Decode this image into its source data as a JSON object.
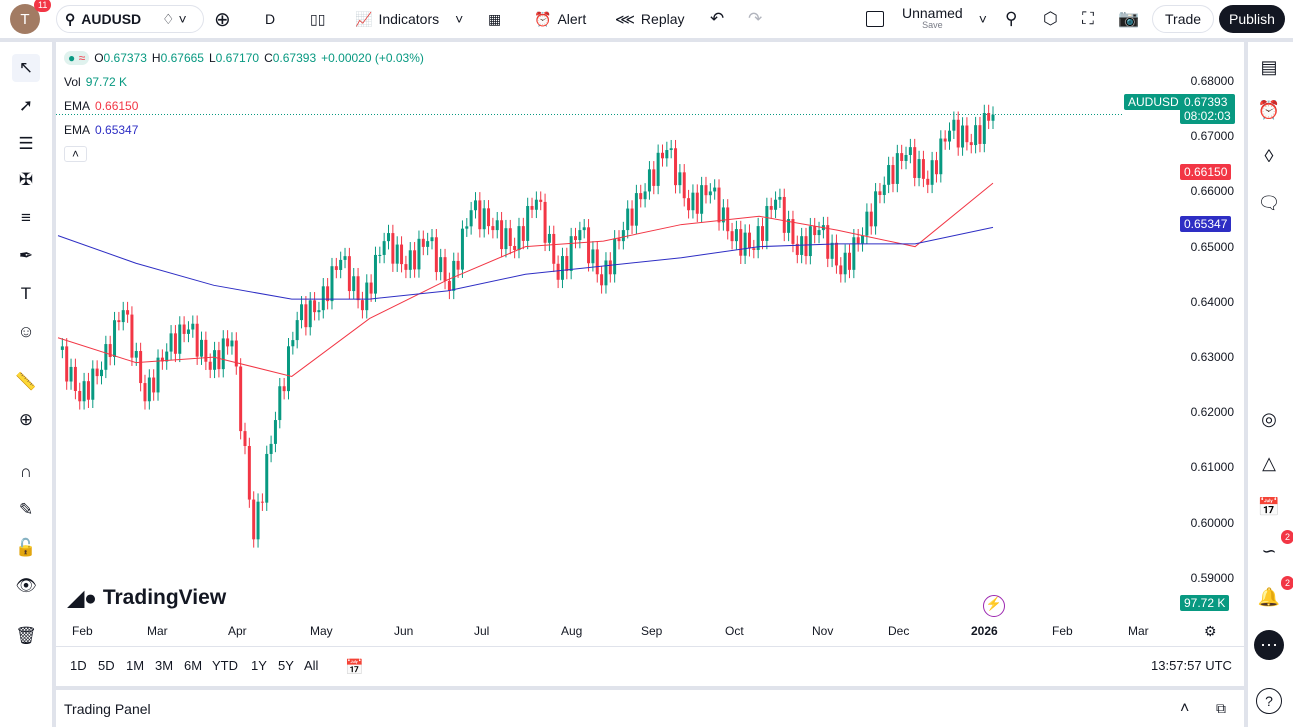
{
  "topbar": {
    "avatar_letter": "T",
    "notif_count": "11",
    "symbol": "AUDUSD",
    "interval": "D",
    "indicators": "Indicators",
    "alert": "Alert",
    "replay": "Replay",
    "layout_name": "Unnamed",
    "save": "Save",
    "trade": "Trade",
    "publish": "Publish"
  },
  "legend": {
    "o": "0.67373",
    "h": "0.67665",
    "l": "0.67170",
    "c": "0.67393",
    "change": "+0.00020 (+0.03%)",
    "vol_label": "Vol",
    "vol": "97.72 K",
    "ema1_label": "EMA",
    "ema1": "0.66150",
    "ema2_label": "EMA",
    "ema2": "0.65347"
  },
  "price_axis": [
    "0.68000",
    "0.67000",
    "0.66000",
    "0.65000",
    "0.64000",
    "0.63000",
    "0.62000",
    "0.61000",
    "0.60000",
    "0.59000"
  ],
  "labels": {
    "symbol": "AUDUSD",
    "price": "0.67393",
    "countdown": "08:02:03",
    "ema1": "0.66150",
    "ema2": "0.65347",
    "vol": "97.72 K"
  },
  "time_axis": [
    "Feb",
    "Mar",
    "Apr",
    "May",
    "Jun",
    "Jul",
    "Aug",
    "Sep",
    "Oct",
    "Nov",
    "Dec",
    "2026",
    "Feb",
    "Mar"
  ],
  "ranges": [
    "1D",
    "5D",
    "1M",
    "3M",
    "6M",
    "YTD",
    "1Y",
    "5Y",
    "All"
  ],
  "clock": "13:57:57 UTC",
  "watermark": "TradingView",
  "trading_panel": "Trading Panel",
  "right_badges": {
    "feed": "2",
    "alerts": "2"
  },
  "colors": {
    "up": "#089981",
    "down": "#f23645",
    "ema1": "#f23645",
    "ema2": "#2e2ec4"
  },
  "chart_data": {
    "type": "candlestick",
    "symbol": "AUDUSD",
    "ylim": [
      0.59,
      0.68
    ],
    "closes": [
      0.6313,
      0.622,
      0.6277,
      0.6385,
      0.622,
      0.631,
      0.635,
      0.6277,
      0.633,
      0.597,
      0.6186,
      0.6367,
      0.6385,
      0.6476,
      0.6385,
      0.651,
      0.6458,
      0.651,
      0.642,
      0.6566,
      0.653,
      0.6494,
      0.6585,
      0.644,
      0.653,
      0.643,
      0.653,
      0.66,
      0.6675,
      0.6566,
      0.66,
      0.651,
      0.6494,
      0.6585,
      0.6485,
      0.653,
      0.645,
      0.652,
      0.6612,
      0.6666,
      0.6612,
      0.671,
      0.6684,
      0.6739
    ],
    "ema50": [
      0.6335,
      0.629,
      0.63,
      0.6265,
      0.637,
      0.644,
      0.65,
      0.651,
      0.654,
      0.6555,
      0.653,
      0.65,
      0.6615
    ],
    "ema200": [
      0.652,
      0.647,
      0.643,
      0.6405,
      0.6405,
      0.642,
      0.645,
      0.6465,
      0.648,
      0.65,
      0.6505,
      0.6505,
      0.6535
    ]
  }
}
